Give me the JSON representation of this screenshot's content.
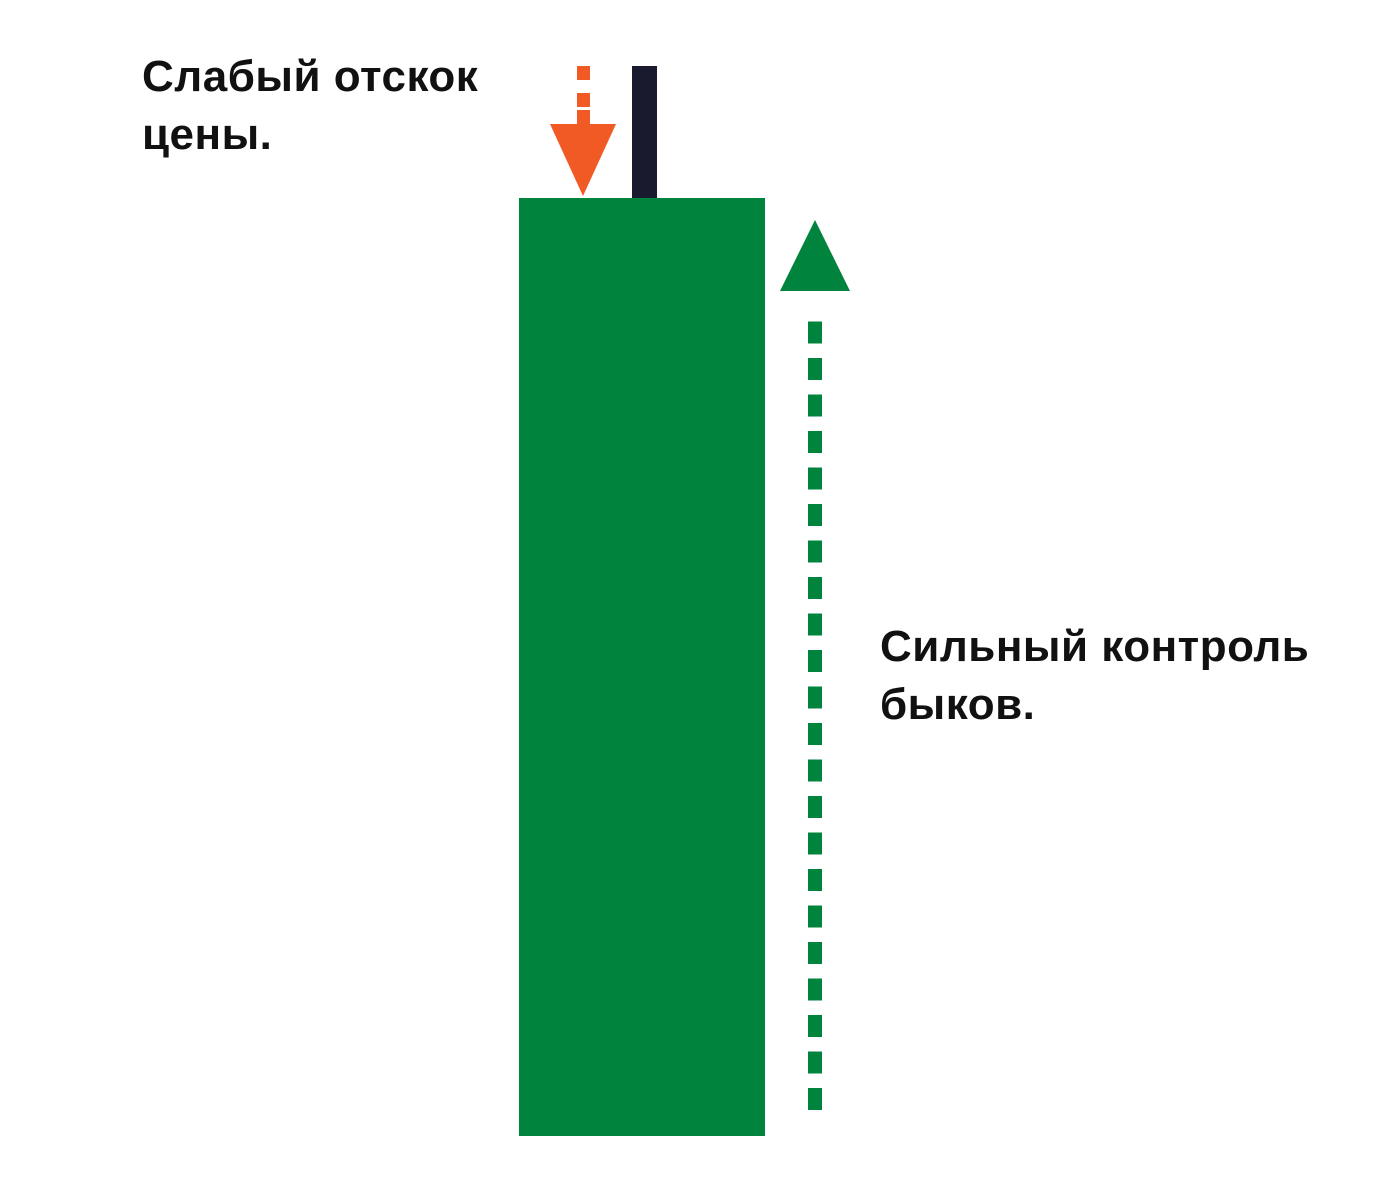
{
  "colors": {
    "background": "#ffffff",
    "candle_body": "#00843d",
    "wick": "#1a1a2e",
    "down_arrow": "#f15a24",
    "up_arrow": "#00843d",
    "text": "#111111"
  },
  "captions": {
    "weak_bounce": {
      "line1": "Слабый отскок",
      "line2": "цены."
    },
    "strong_control": {
      "line1": "Сильный контроль",
      "line2": "быков."
    }
  },
  "icons": {
    "down_arrow": "dashed-down-arrow-icon",
    "up_arrow": "dashed-up-arrow-icon"
  }
}
